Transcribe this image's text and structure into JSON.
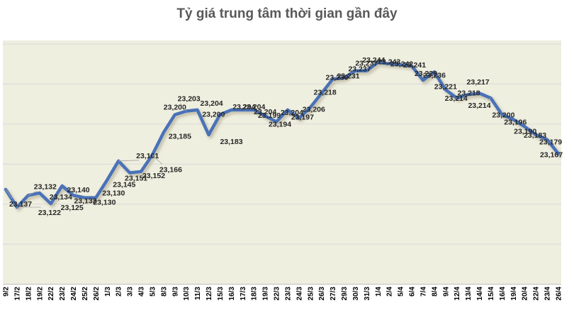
{
  "chart_data": {
    "type": "line",
    "title": "Tỷ giá trung tâm thời gian gần đây",
    "categories": [
      "9/2",
      "17/2",
      "18/2",
      "19/2",
      "22/2",
      "23/2",
      "24/2",
      "25/2",
      "26/2",
      "1/3",
      "2/3",
      "3/3",
      "4/3",
      "5/3",
      "8/3",
      "9/3",
      "10/3",
      "11/3",
      "12/3",
      "15/3",
      "16/3",
      "17/3",
      "18/3",
      "19/3",
      "22/3",
      "23/3",
      "24/3",
      "25/3",
      "26/3",
      "27/3",
      "29/3",
      "30/3",
      "31/3",
      "1/4",
      "2/4",
      "5/4",
      "6/4",
      "7/4",
      "8/4",
      "9/4",
      "12/4",
      "13/4",
      "14/4",
      "15/4",
      "16/4",
      "19/4",
      "20/4",
      "22/4",
      "23/4",
      "26/4"
    ],
    "values": [
      23137,
      23122,
      23132,
      23134,
      23125,
      23140,
      23132,
      23130,
      23130,
      23145,
      23161,
      23151,
      23152,
      23166,
      23185,
      23200,
      23203,
      23204,
      23183,
      23200,
      23204,
      23204,
      23204,
      23199,
      23194,
      23204,
      23197,
      23206,
      23218,
      23230,
      23231,
      23237,
      23237,
      23244,
      23243,
      23242,
      23241,
      23229,
      23236,
      23221,
      23214,
      23217,
      23218,
      23214,
      23200,
      23196,
      23190,
      23183,
      23179,
      23167
    ],
    "data_label_texts": [
      "23,137",
      "23,122",
      "23,132",
      "23,134",
      "23,125",
      "23,140",
      "23,132",
      "23,130",
      "23,130",
      "23,145",
      "23,161",
      "23,151",
      "23,152",
      "23,166",
      "23,185",
      "23,200",
      "23,203",
      "23,204",
      "23,183",
      "23,200",
      "23,204",
      "23,204",
      "23,204",
      "23,199",
      "23,194",
      "23,204",
      "23,197",
      "23,206",
      "23,218",
      "23,230",
      "23,231",
      "23,237",
      "23,237",
      "23,244",
      "23,243",
      "23,242",
      "23,241",
      "23,229",
      "23,236",
      "23,221",
      "23,214",
      "23,217",
      "23,218",
      "23,214",
      "23,200",
      "23,196",
      "23,190",
      "23,183",
      "23,179",
      "23,167"
    ],
    "xlabel": "",
    "ylabel": "",
    "legend": "none",
    "grid": "horizontal",
    "data_labels_visible": true,
    "x_axis": {
      "label_rotation_degrees": -90
    },
    "y_axis": {
      "visible": false,
      "approx_range": [
        23057,
        23263
      ]
    },
    "styles": {
      "line_color": "#4a72b8",
      "plot_background": "#efefe0",
      "gridline_color": "#d9d9d9",
      "axis_line_color": "#bfbfbf",
      "title_color": "#595959",
      "label_color": "#262626",
      "x_label_color": "#000000",
      "leader_line_color": "#a6a6a6"
    }
  }
}
